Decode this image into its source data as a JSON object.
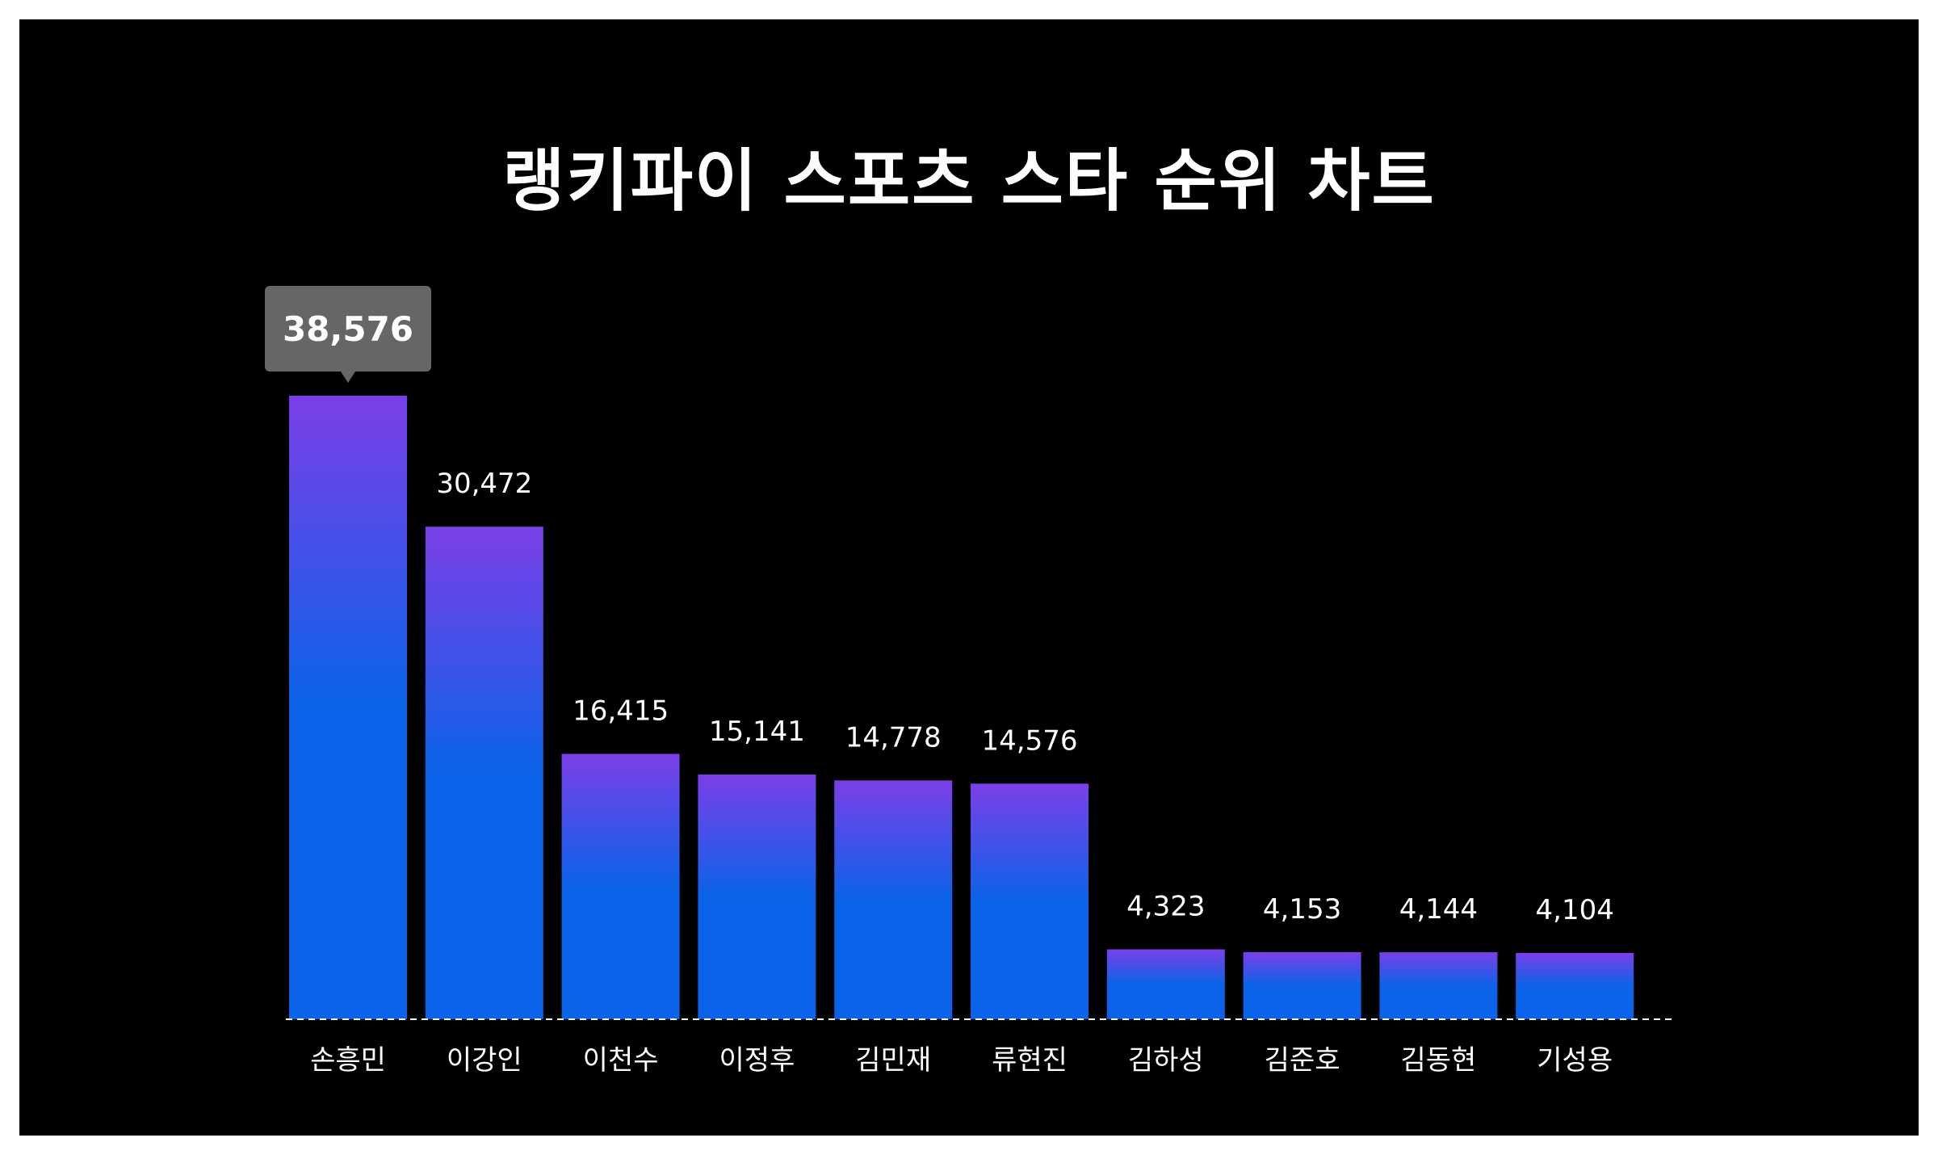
{
  "chart_data": {
    "type": "bar",
    "title": "랭키파이 스포츠 스타 순위 차트",
    "categories": [
      "손흥민",
      "이강인",
      "이천수",
      "이정후",
      "김민재",
      "류현진",
      "김하성",
      "김준호",
      "김동현",
      "기성용"
    ],
    "values": [
      38576,
      30472,
      16415,
      15141,
      14778,
      14576,
      4323,
      4153,
      4144,
      4104
    ],
    "value_labels": [
      "38,576",
      "30,472",
      "16,415",
      "15,141",
      "14,778",
      "14,576",
      "4,323",
      "4,153",
      "4,144",
      "4,104"
    ],
    "highlighted_index": 0,
    "ylim": [
      0,
      38576
    ],
    "grid": false,
    "legend": "none",
    "colors": {
      "background": "#000000",
      "bar_top": "#7b3fe8",
      "bar_bottom": "#0a63e8",
      "text": "#ffffff",
      "tooltip_bg": "#666666",
      "baseline": "#ffffff"
    }
  }
}
